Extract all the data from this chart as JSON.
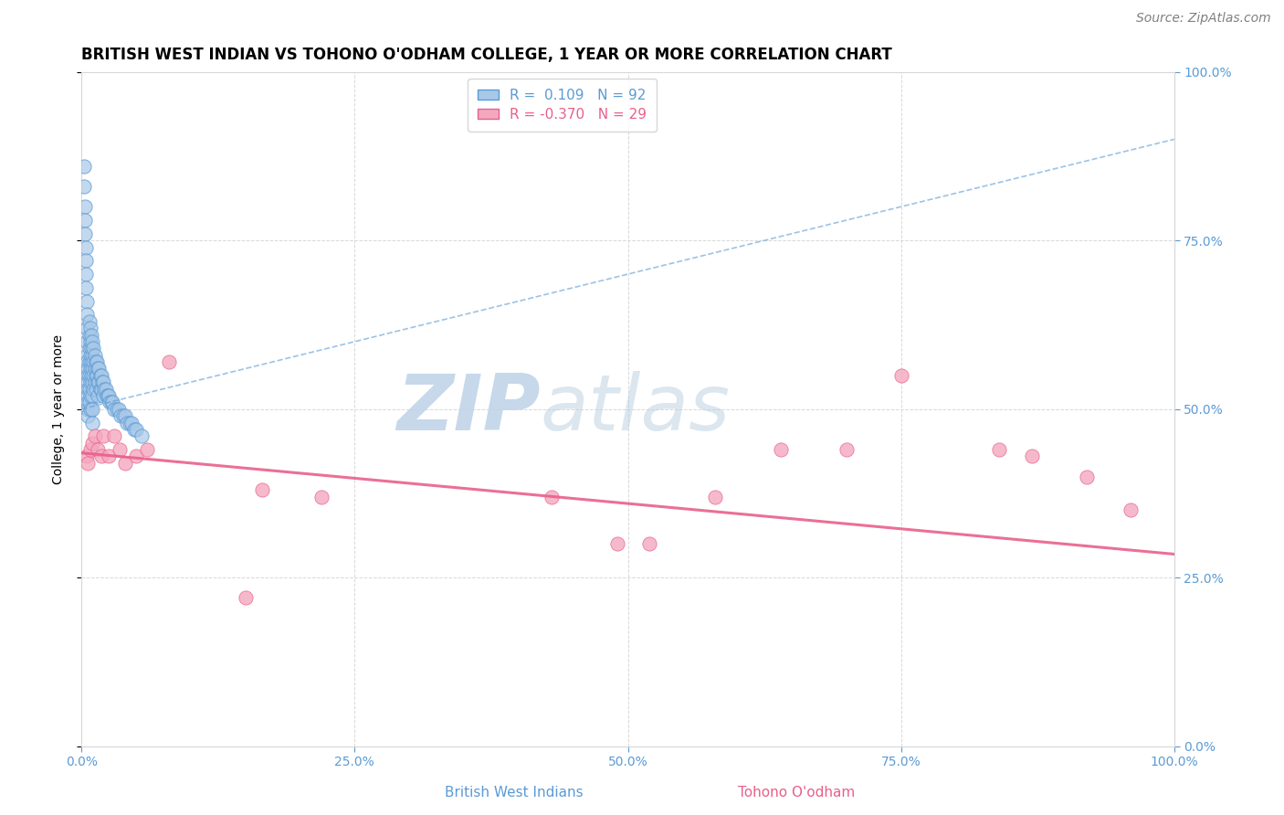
{
  "title": "BRITISH WEST INDIAN VS TOHONO O'ODHAM COLLEGE, 1 YEAR OR MORE CORRELATION CHART",
  "source_text": "Source: ZipAtlas.com",
  "ylabel": "College, 1 year or more",
  "xlim": [
    0.0,
    1.0
  ],
  "ylim": [
    0.0,
    1.0
  ],
  "xticks": [
    0.0,
    0.25,
    0.5,
    0.75,
    1.0
  ],
  "yticks": [
    0.0,
    0.25,
    0.5,
    0.75,
    1.0
  ],
  "xticklabels": [
    "0.0%",
    "25.0%",
    "50.0%",
    "75.0%",
    "100.0%"
  ],
  "yticklabels": [
    "0.0%",
    "25.0%",
    "50.0%",
    "75.0%",
    "100.0%"
  ],
  "r_blue": 0.109,
  "n_blue": 92,
  "r_pink": -0.37,
  "n_pink": 29,
  "blue_scatter_x": [
    0.002,
    0.002,
    0.003,
    0.003,
    0.003,
    0.004,
    0.004,
    0.004,
    0.004,
    0.005,
    0.005,
    0.005,
    0.005,
    0.005,
    0.005,
    0.006,
    0.006,
    0.006,
    0.006,
    0.006,
    0.006,
    0.006,
    0.006,
    0.007,
    0.007,
    0.007,
    0.007,
    0.007,
    0.007,
    0.007,
    0.008,
    0.008,
    0.008,
    0.008,
    0.008,
    0.008,
    0.008,
    0.009,
    0.009,
    0.009,
    0.009,
    0.01,
    0.01,
    0.01,
    0.01,
    0.01,
    0.01,
    0.01,
    0.011,
    0.011,
    0.011,
    0.011,
    0.012,
    0.012,
    0.012,
    0.013,
    0.013,
    0.013,
    0.014,
    0.014,
    0.015,
    0.015,
    0.015,
    0.016,
    0.016,
    0.017,
    0.017,
    0.018,
    0.018,
    0.019,
    0.02,
    0.02,
    0.021,
    0.022,
    0.023,
    0.024,
    0.025,
    0.026,
    0.027,
    0.028,
    0.03,
    0.032,
    0.034,
    0.036,
    0.038,
    0.04,
    0.042,
    0.044,
    0.046,
    0.048,
    0.05,
    0.055
  ],
  "blue_scatter_y": [
    0.86,
    0.83,
    0.8,
    0.78,
    0.76,
    0.74,
    0.72,
    0.7,
    0.68,
    0.66,
    0.64,
    0.62,
    0.6,
    0.58,
    0.57,
    0.56,
    0.55,
    0.54,
    0.53,
    0.52,
    0.51,
    0.5,
    0.49,
    0.63,
    0.61,
    0.59,
    0.57,
    0.55,
    0.53,
    0.51,
    0.62,
    0.6,
    0.58,
    0.56,
    0.54,
    0.52,
    0.5,
    0.61,
    0.59,
    0.57,
    0.55,
    0.6,
    0.58,
    0.56,
    0.54,
    0.52,
    0.5,
    0.48,
    0.59,
    0.57,
    0.55,
    0.53,
    0.58,
    0.56,
    0.54,
    0.57,
    0.55,
    0.53,
    0.57,
    0.55,
    0.56,
    0.54,
    0.52,
    0.56,
    0.54,
    0.55,
    0.53,
    0.55,
    0.53,
    0.54,
    0.54,
    0.52,
    0.53,
    0.53,
    0.52,
    0.52,
    0.52,
    0.51,
    0.51,
    0.51,
    0.5,
    0.5,
    0.5,
    0.49,
    0.49,
    0.49,
    0.48,
    0.48,
    0.48,
    0.47,
    0.47,
    0.46
  ],
  "pink_scatter_x": [
    0.005,
    0.006,
    0.008,
    0.01,
    0.012,
    0.015,
    0.018,
    0.02,
    0.025,
    0.03,
    0.035,
    0.04,
    0.05,
    0.06,
    0.08,
    0.15,
    0.165,
    0.22,
    0.43,
    0.49,
    0.52,
    0.58,
    0.64,
    0.7,
    0.75,
    0.84,
    0.87,
    0.92,
    0.96
  ],
  "pink_scatter_y": [
    0.43,
    0.42,
    0.44,
    0.45,
    0.46,
    0.44,
    0.43,
    0.46,
    0.43,
    0.46,
    0.44,
    0.42,
    0.43,
    0.44,
    0.57,
    0.22,
    0.38,
    0.37,
    0.37,
    0.3,
    0.3,
    0.37,
    0.44,
    0.44,
    0.55,
    0.44,
    0.43,
    0.4,
    0.35
  ],
  "blue_trend_x0": 0.0,
  "blue_trend_x1": 1.0,
  "blue_trend_y0": 0.5,
  "blue_trend_y1": 0.9,
  "pink_trend_x0": 0.0,
  "pink_trend_x1": 1.0,
  "pink_trend_y0": 0.435,
  "pink_trend_y1": 0.285,
  "blue_dot_color": "#a8c8e8",
  "pink_dot_color": "#f4a8c0",
  "blue_line_color": "#5b9bd5",
  "pink_line_color": "#e8608a",
  "tick_color": "#5b9bd5",
  "grid_color": "#d8d8d8",
  "title_fontsize": 12,
  "tick_fontsize": 10,
  "ylabel_fontsize": 10,
  "legend_fontsize": 11,
  "source_fontsize": 10
}
